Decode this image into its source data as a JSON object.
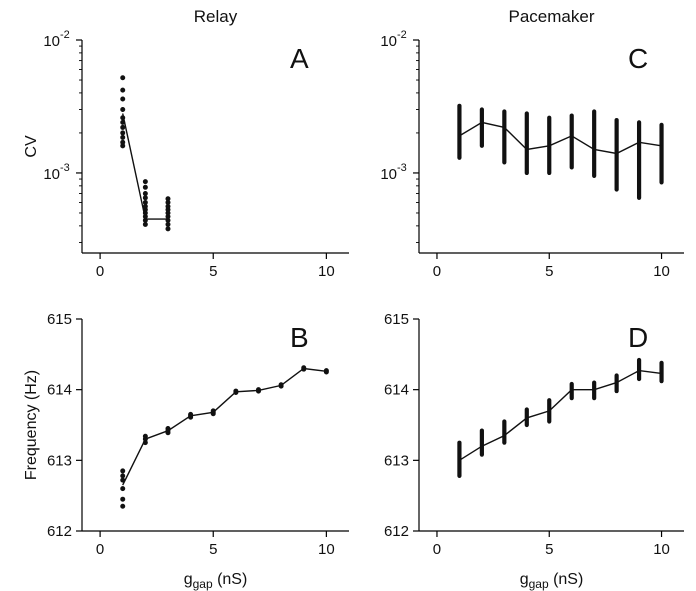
{
  "chart_data": [
    {
      "type": "line",
      "panel": "A",
      "title": "Relay",
      "ylabel": "CV",
      "xlabel": "",
      "yscale": "log",
      "xlim": [
        -0.8,
        11
      ],
      "ylim": [
        0.00025,
        0.01
      ],
      "x_ticks": [
        0,
        5,
        10
      ],
      "x_tick_labels": [
        "0",
        "5",
        "10"
      ],
      "y_ticks": [
        0.01,
        0.001
      ],
      "y_tick_labels": [
        {
          "base": "10",
          "exp": "-2"
        },
        {
          "base": "10",
          "exp": "-3"
        }
      ],
      "line": {
        "x": [
          1,
          2,
          3
        ],
        "y": [
          0.0028,
          0.00045,
          0.00045
        ]
      },
      "points": [
        {
          "x": 1,
          "y": [
            0.0016,
            0.0017,
            0.00185,
            0.002,
            0.0022,
            0.0024,
            0.0026,
            0.003,
            0.0036,
            0.0042,
            0.0052
          ]
        },
        {
          "x": 2,
          "y": [
            0.00041,
            0.00044,
            0.00047,
            0.0005,
            0.00053,
            0.00056,
            0.0006,
            0.00065,
            0.0007,
            0.00078,
            0.00086
          ]
        },
        {
          "x": 3,
          "y": [
            0.00038,
            0.00041,
            0.00044,
            0.00047,
            0.0005,
            0.00053,
            0.00056,
            0.0006,
            0.00064
          ]
        }
      ]
    },
    {
      "type": "line",
      "panel": "B",
      "title": "",
      "ylabel": "Frequency (Hz)",
      "xlabel": "g_gap (nS)",
      "xlabel_main": "g",
      "xlabel_sub": "gap",
      "xlabel_rest": " (nS)",
      "yscale": "linear",
      "xlim": [
        -0.8,
        11
      ],
      "ylim": [
        612,
        615
      ],
      "x_ticks": [
        0,
        5,
        10
      ],
      "x_tick_labels": [
        "0",
        "5",
        "10"
      ],
      "y_ticks": [
        612,
        613,
        614,
        615
      ],
      "y_tick_labels": [
        "612",
        "613",
        "614",
        "615"
      ],
      "line": {
        "x": [
          1,
          2,
          3,
          4,
          5,
          6,
          7,
          8,
          9,
          10
        ],
        "y": [
          612.65,
          613.3,
          613.42,
          613.63,
          613.68,
          613.97,
          613.99,
          614.06,
          614.3,
          614.26
        ]
      },
      "points": [
        {
          "x": 1,
          "y": [
            612.35,
            612.45,
            612.6,
            612.72,
            612.78,
            612.85
          ]
        },
        {
          "x": 2,
          "y": [
            613.25,
            613.3,
            613.34
          ]
        },
        {
          "x": 3,
          "y": [
            613.39,
            613.42,
            613.45
          ]
        },
        {
          "x": 4,
          "y": [
            613.61,
            613.63,
            613.65
          ]
        },
        {
          "x": 5,
          "y": [
            613.66,
            613.68,
            613.7
          ]
        },
        {
          "x": 6,
          "y": [
            613.96,
            613.98
          ]
        },
        {
          "x": 7,
          "y": [
            613.98,
            614.0
          ]
        },
        {
          "x": 8,
          "y": [
            614.05,
            614.07
          ]
        },
        {
          "x": 9,
          "y": [
            614.29,
            614.31
          ]
        },
        {
          "x": 10,
          "y": [
            614.25,
            614.27
          ]
        }
      ]
    },
    {
      "type": "line",
      "panel": "C",
      "title": "Pacemaker",
      "ylabel": "",
      "xlabel": "",
      "yscale": "log",
      "xlim": [
        -0.8,
        11
      ],
      "ylim": [
        0.00025,
        0.01
      ],
      "x_ticks": [
        0,
        5,
        10
      ],
      "x_tick_labels": [
        "0",
        "5",
        "10"
      ],
      "y_ticks": [
        0.01,
        0.001
      ],
      "y_tick_labels": [
        {
          "base": "10",
          "exp": "-2"
        },
        {
          "base": "10",
          "exp": "-3"
        }
      ],
      "line": {
        "x": [
          1,
          2,
          3,
          4,
          5,
          6,
          7,
          8,
          9,
          10
        ],
        "y": [
          0.0019,
          0.0024,
          0.0022,
          0.0015,
          0.0016,
          0.0019,
          0.0015,
          0.0014,
          0.0017,
          0.0016
        ]
      },
      "ranges": [
        {
          "x": 1,
          "min": 0.0013,
          "max": 0.0032
        },
        {
          "x": 2,
          "min": 0.0016,
          "max": 0.003
        },
        {
          "x": 3,
          "min": 0.0012,
          "max": 0.0029
        },
        {
          "x": 4,
          "min": 0.001,
          "max": 0.0028
        },
        {
          "x": 5,
          "min": 0.001,
          "max": 0.0026
        },
        {
          "x": 6,
          "min": 0.0011,
          "max": 0.0027
        },
        {
          "x": 7,
          "min": 0.00095,
          "max": 0.0029
        },
        {
          "x": 8,
          "min": 0.00075,
          "max": 0.0025
        },
        {
          "x": 9,
          "min": 0.00065,
          "max": 0.0024
        },
        {
          "x": 10,
          "min": 0.00085,
          "max": 0.0023
        }
      ]
    },
    {
      "type": "line",
      "panel": "D",
      "title": "",
      "ylabel": "",
      "xlabel": "g_gap (nS)",
      "xlabel_main": "g",
      "xlabel_sub": "gap",
      "xlabel_rest": " (nS)",
      "yscale": "linear",
      "xlim": [
        -0.8,
        11
      ],
      "ylim": [
        612,
        615
      ],
      "x_ticks": [
        0,
        5,
        10
      ],
      "x_tick_labels": [
        "0",
        "5",
        "10"
      ],
      "y_ticks": [
        612,
        613,
        614,
        615
      ],
      "y_tick_labels": [
        "612",
        "613",
        "614",
        "615"
      ],
      "line": {
        "x": [
          1,
          2,
          3,
          4,
          5,
          6,
          7,
          8,
          9,
          10
        ],
        "y": [
          613.0,
          613.2,
          613.35,
          613.6,
          613.7,
          614.0,
          614.0,
          614.1,
          614.27,
          614.23
        ]
      },
      "ranges": [
        {
          "x": 1,
          "min": 612.78,
          "max": 613.25
        },
        {
          "x": 2,
          "min": 613.08,
          "max": 613.42
        },
        {
          "x": 3,
          "min": 613.25,
          "max": 613.55
        },
        {
          "x": 4,
          "min": 613.5,
          "max": 613.72
        },
        {
          "x": 5,
          "min": 613.55,
          "max": 613.85
        },
        {
          "x": 6,
          "min": 613.88,
          "max": 614.08
        },
        {
          "x": 7,
          "min": 613.88,
          "max": 614.1
        },
        {
          "x": 8,
          "min": 613.98,
          "max": 614.2
        },
        {
          "x": 9,
          "min": 614.15,
          "max": 614.42
        },
        {
          "x": 10,
          "min": 614.12,
          "max": 614.38
        }
      ]
    }
  ]
}
